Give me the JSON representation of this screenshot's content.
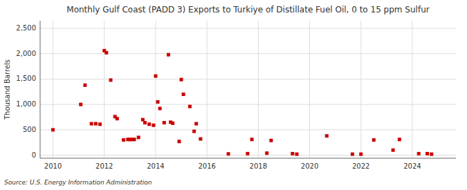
{
  "chart_data": {
    "type": "scatter",
    "title": "Monthly Gulf Coast (PADD 3) Exports to Turkiye of Distillate Fuel Oil, 0 to 15 ppm Sulfur",
    "ylabel": "Thousand Barrels",
    "source": "Source: U.S. Energy Information Administration",
    "color": "#cc0000",
    "marker": "square",
    "grid": true,
    "xlim": [
      2009.5,
      2025.7
    ],
    "ylim": [
      -60,
      2650
    ],
    "xticks": [
      2010,
      2012,
      2014,
      2016,
      2018,
      2020,
      2022,
      2024
    ],
    "yticks": [
      0,
      500,
      {
        "value": 1000,
        "label": "1,000"
      },
      {
        "value": 1500,
        "label": "1,500"
      },
      {
        "value": 2000,
        "label": "2,000"
      },
      {
        "value": 2500,
        "label": "2,500"
      }
    ],
    "x": [
      2010.0,
      2011.083,
      2011.25,
      2011.5,
      2011.667,
      2011.833,
      2012.0,
      2012.083,
      2012.25,
      2012.417,
      2012.5,
      2012.75,
      2012.917,
      2013.0,
      2013.083,
      2013.167,
      2013.333,
      2013.5,
      2013.583,
      2013.75,
      2013.917,
      2014.0,
      2014.083,
      2014.167,
      2014.333,
      2014.5,
      2014.583,
      2014.667,
      2014.917,
      2015.0,
      2015.083,
      2015.333,
      2015.5,
      2015.583,
      2015.75,
      2016.833,
      2017.583,
      2017.75,
      2018.333,
      2018.5,
      2019.333,
      2019.5,
      2020.667,
      2021.667,
      2022.0,
      2022.5,
      2023.25,
      2023.5,
      2024.25,
      2024.583,
      2024.75
    ],
    "values": [
      500,
      1000,
      1380,
      620,
      620,
      610,
      2060,
      2020,
      1480,
      760,
      720,
      300,
      310,
      310,
      310,
      310,
      350,
      700,
      640,
      610,
      590,
      1560,
      1050,
      920,
      640,
      1980,
      650,
      630,
      270,
      1490,
      1200,
      960,
      470,
      620,
      320,
      25,
      30,
      310,
      40,
      290,
      30,
      20,
      380,
      20,
      20,
      300,
      100,
      310,
      30,
      30,
      20
    ]
  }
}
